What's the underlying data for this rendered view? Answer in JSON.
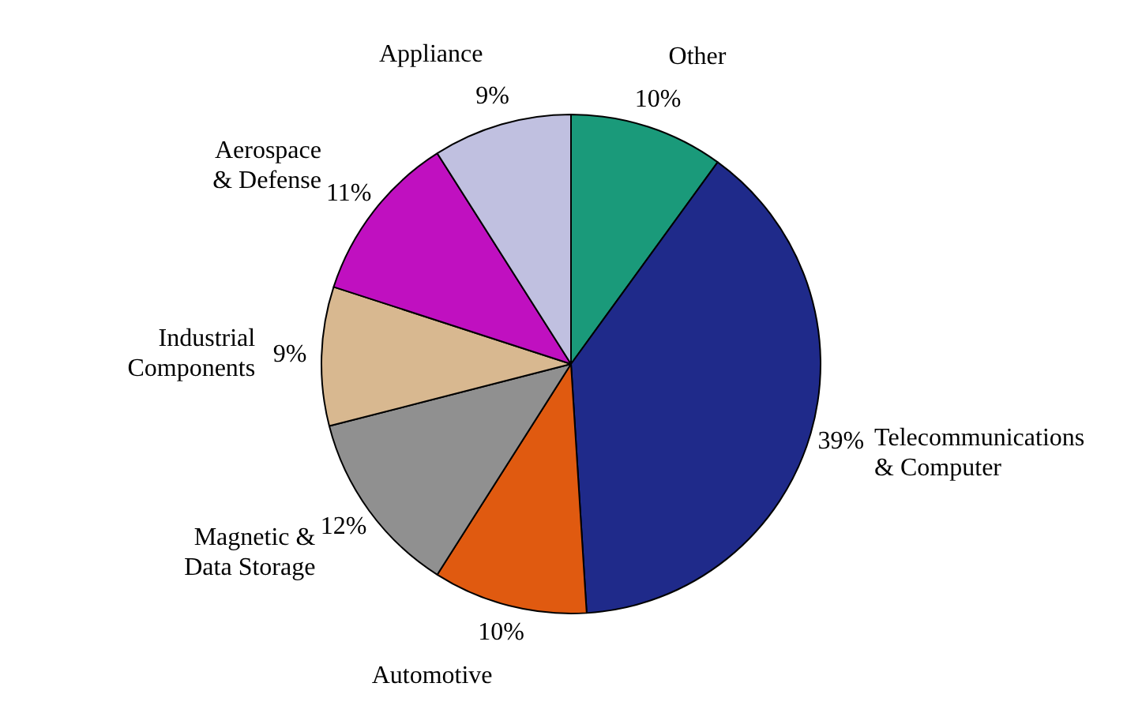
{
  "chart_data": {
    "type": "pie",
    "categories": [
      "Other",
      "Telecommunications\n& Computer",
      "Automotive",
      "Magnetic &\nData Storage",
      "Industrial\nComponents",
      "Aerospace\n& Defense",
      "Appliance"
    ],
    "values": [
      10,
      39,
      10,
      12,
      9,
      11,
      9
    ],
    "value_labels": [
      "10%",
      "39%",
      "10%",
      "12%",
      "9%",
      "11%",
      "9%"
    ],
    "colors": [
      "#1a9a7a",
      "#1f2a8a",
      "#e05a10",
      "#909090",
      "#d8b890",
      "#c010c0",
      "#c0c0e0"
    ],
    "legend": false
  }
}
